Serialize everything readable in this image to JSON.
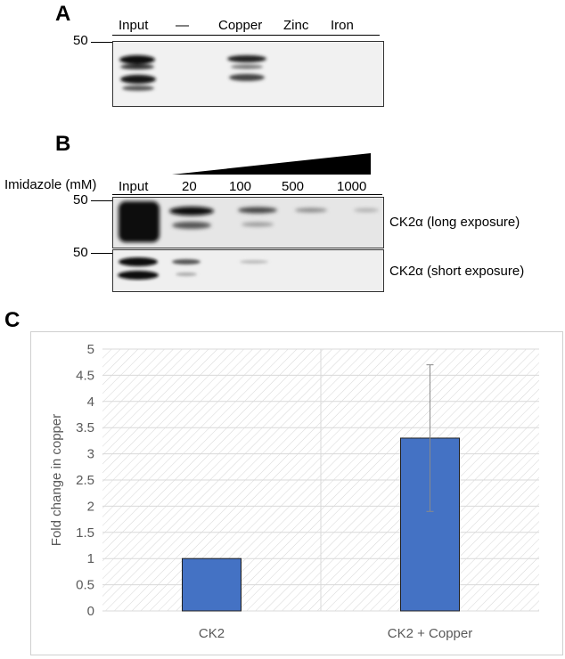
{
  "panel_a": {
    "letter": "A",
    "marker": "50",
    "lanes": [
      "Input",
      "—",
      "Copper",
      "Zinc",
      "Iron"
    ]
  },
  "panel_b": {
    "letter": "B",
    "treatment_label": "Imidazole (mM)",
    "lanes": [
      "Input",
      "20",
      "100",
      "500",
      "1000"
    ],
    "marker_top": "50",
    "marker_bottom": "50",
    "blot_labels": [
      "CK2α (long exposure)",
      "CK2α (short exposure)"
    ]
  },
  "panel_c": {
    "letter": "C"
  },
  "chart_data": {
    "type": "bar",
    "categories": [
      "CK2",
      "CK2 + Copper"
    ],
    "values": [
      1,
      3.3
    ],
    "error": [
      0,
      1.4
    ],
    "ylabel": "Fold change in copper",
    "ylim": [
      0,
      5
    ],
    "yticks": [
      "0",
      "0.5",
      "1",
      "1.5",
      "2",
      "2.5",
      "3",
      "3.5",
      "4",
      "4.5",
      "5"
    ],
    "bar_color": "#4472c4",
    "grid": true
  }
}
